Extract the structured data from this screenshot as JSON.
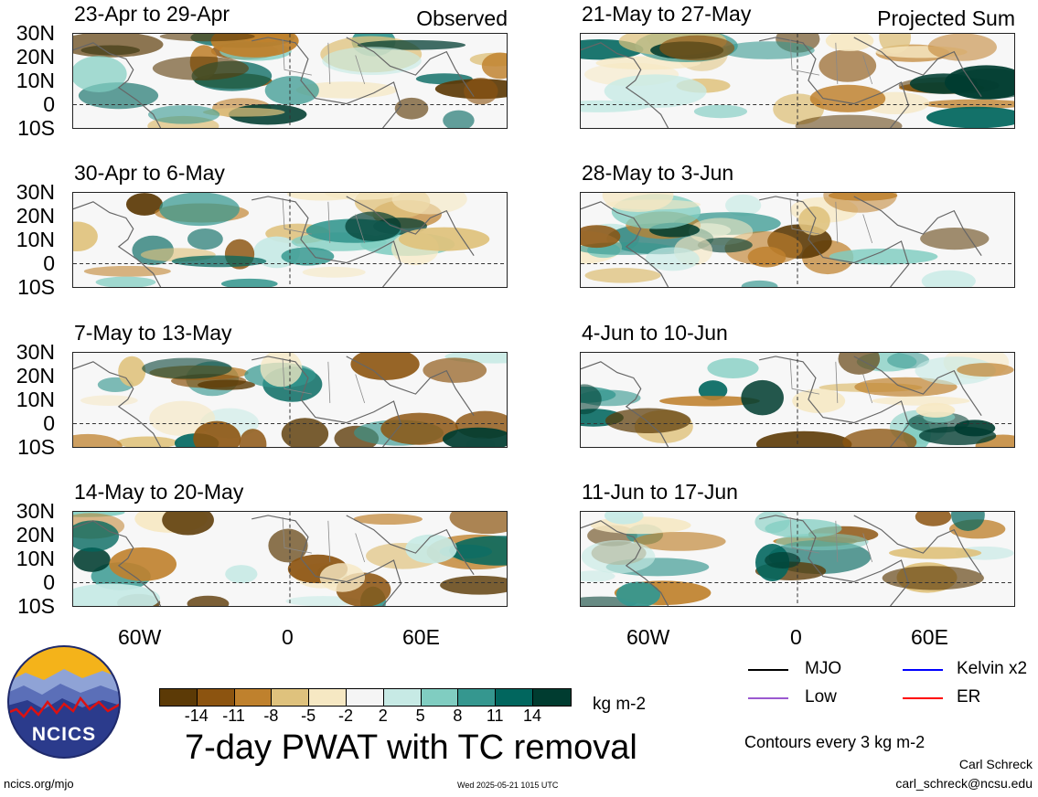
{
  "panels_left": [
    {
      "title": "23-Apr to 29-Apr",
      "tag": "Observed"
    },
    {
      "title": "30-Apr to 6-May",
      "tag": ""
    },
    {
      "title": "7-May to 13-May",
      "tag": ""
    },
    {
      "title": "14-May to 20-May",
      "tag": ""
    }
  ],
  "panels_right": [
    {
      "title": "21-May to 27-May",
      "tag": "Projected Sum"
    },
    {
      "title": "28-May to 3-Jun",
      "tag": ""
    },
    {
      "title": "4-Jun to 10-Jun",
      "tag": ""
    },
    {
      "title": "11-Jun to 17-Jun",
      "tag": ""
    }
  ],
  "lat_labels": [
    "30N",
    "20N",
    "10N",
    "0",
    "10S"
  ],
  "lon_labels": [
    "60W",
    "0",
    "60E"
  ],
  "colorbar": {
    "ticks": [
      "-14",
      "-11",
      "-8",
      "-5",
      "-2",
      "2",
      "5",
      "8",
      "11",
      "14"
    ],
    "colors": [
      "#5c3a06",
      "#8c5410",
      "#bf812d",
      "#dfc27d",
      "#f6e8c3",
      "#f5f5f5",
      "#c7eae5",
      "#80cdc1",
      "#35978f",
      "#01665e",
      "#003c30"
    ],
    "units": "kg m-2"
  },
  "legend": [
    {
      "label": "MJO",
      "color": "#000000"
    },
    {
      "label": "Kelvin x2",
      "color": "#0000ff"
    },
    {
      "label": "Low",
      "color": "#9b59d0"
    },
    {
      "label": "ER",
      "color": "#ff0000"
    }
  ],
  "main_title": "7-day PWAT with TC removal",
  "contour_note": "Contours every 3 kg m-2",
  "author": "Carl Schreck",
  "email": "carl_schreck@ncsu.edu",
  "url": "ncics.org/mjo",
  "timestamp": "Wed 2025-05-21 1015 UTC",
  "logo_text": "NCICS"
}
